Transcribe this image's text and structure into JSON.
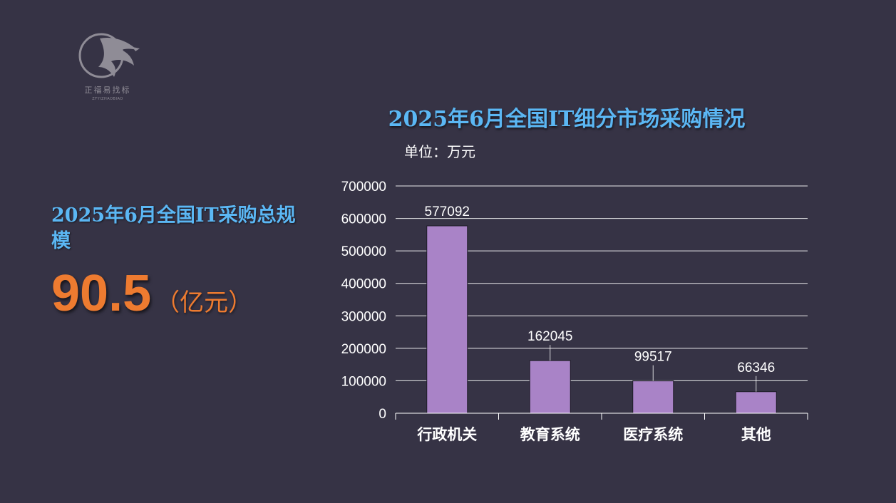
{
  "logo": {
    "name": "正福易找标",
    "subtitle": "ZFYIZHAOBIAO"
  },
  "kpi": {
    "label": "2025年6月全国IT采购总规模",
    "value": "90.5",
    "unit": "（亿元）"
  },
  "colors": {
    "background": "#363345",
    "title": "#5bb7f4",
    "accent": "#ee7b30",
    "bar": "#a983c7",
    "gridline": "#ffffff"
  },
  "chart_data": {
    "type": "bar",
    "title": "2025年6月全国IT细分市场采购情况",
    "unit_label": "单位：万元",
    "categories": [
      "行政机关",
      "教育系统",
      "医疗系统",
      "其他"
    ],
    "values": [
      577092,
      162045,
      99517,
      66346
    ],
    "data_labels": [
      "577092",
      "162045",
      "99517",
      "66346"
    ],
    "yticks": [
      0,
      100000,
      200000,
      300000,
      400000,
      500000,
      600000,
      700000
    ],
    "ylim": [
      0,
      700000
    ],
    "grid": true,
    "legend": "none"
  }
}
